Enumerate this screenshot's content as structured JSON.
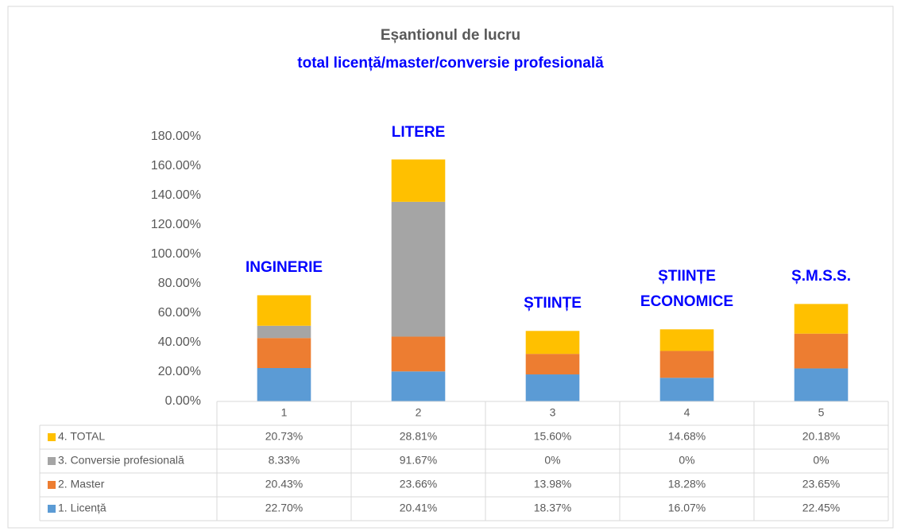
{
  "chart_data": {
    "type": "bar",
    "stacked": true,
    "title": "Eșantionul de lucru",
    "subtitle": "total licență/master/conversie profesională",
    "categories": [
      "1",
      "2",
      "3",
      "4",
      "5"
    ],
    "series": [
      {
        "name": "1. Licență",
        "color": "#5b9bd5",
        "values": [
          22.7,
          20.41,
          18.37,
          16.07,
          22.45
        ],
        "value_labels": [
          "22.70%",
          "20.41%",
          "18.37%",
          "16.07%",
          "22.45%"
        ]
      },
      {
        "name": "2. Master",
        "color": "#ed7d31",
        "values": [
          20.43,
          23.66,
          13.98,
          18.28,
          23.65
        ],
        "value_labels": [
          "20.43%",
          "23.66%",
          "13.98%",
          "18.28%",
          "23.65%"
        ]
      },
      {
        "name": "3. Conversie profesională",
        "color": "#a5a5a5",
        "values": [
          8.33,
          91.67,
          0,
          0,
          0
        ],
        "value_labels": [
          "8.33%",
          "91.67%",
          "0%",
          "0%",
          "0%"
        ]
      },
      {
        "name": "4. TOTAL",
        "color": "#ffc000",
        "values": [
          20.73,
          28.81,
          15.6,
          14.68,
          20.18
        ],
        "value_labels": [
          "20.73%",
          "28.81%",
          "15.60%",
          "14.68%",
          "20.18%"
        ]
      }
    ],
    "annotations": [
      "INGINERIE",
      "LITERE",
      "ȘTIINȚE",
      "ȘTIINȚE ECONOMICE",
      "Ș.M.S.S."
    ],
    "ylim": [
      0,
      180
    ],
    "yticks": [
      {
        "value": 0,
        "label": "0.00%"
      },
      {
        "value": 20,
        "label": "20.00%"
      },
      {
        "value": 40,
        "label": "40.00%"
      },
      {
        "value": 60,
        "label": "60.00%"
      },
      {
        "value": 80,
        "label": "80.00%"
      },
      {
        "value": 100,
        "label": "100.00%"
      },
      {
        "value": 120,
        "label": "120.00%"
      },
      {
        "value": 140,
        "label": "140.00%"
      },
      {
        "value": 160,
        "label": "160.00%"
      },
      {
        "value": 180,
        "label": "180.00%"
      }
    ],
    "grid": false,
    "data_table": true
  }
}
